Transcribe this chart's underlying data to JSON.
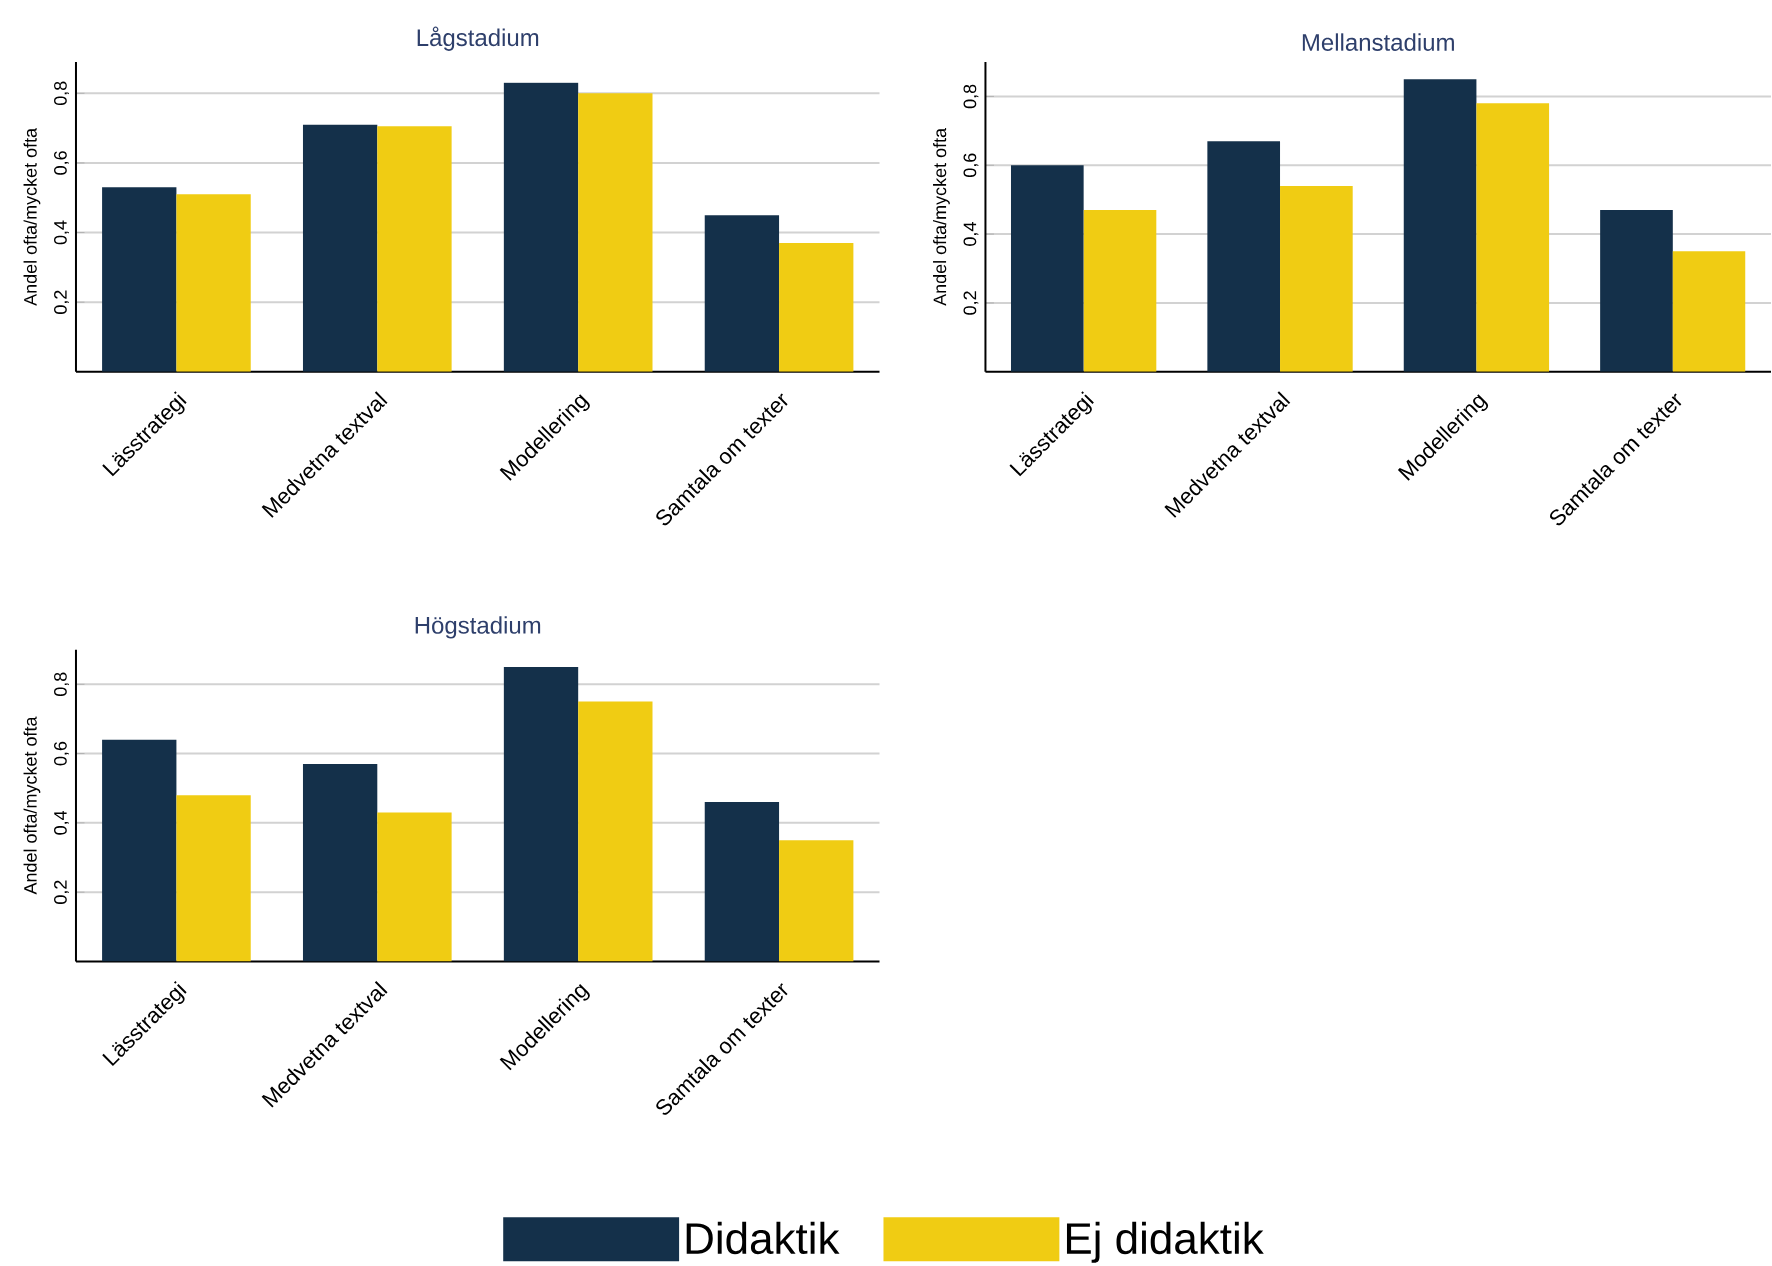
{
  "chart_data": [
    {
      "type": "bar",
      "title": "Lågstadium",
      "ylabel": "Andel ofta/mycket ofta",
      "categories": [
        "Lässtrategi",
        "Medvetna textval",
        "Modellering",
        "Samtala om texter"
      ],
      "series": [
        {
          "color": "#14304a",
          "values": [
            0.53,
            0.71,
            0.83,
            0.45
          ]
        },
        {
          "color": "#f0cc13",
          "values": [
            0.51,
            0.705,
            0.8,
            0.37
          ]
        }
      ],
      "ylim": [
        0,
        0.89
      ],
      "yticks": [
        {
          "value": 0.2,
          "label": "0,2"
        },
        {
          "value": 0.4,
          "label": "0,4"
        },
        {
          "value": 0.6,
          "label": "0,6"
        },
        {
          "value": 0.8,
          "label": "0,8"
        }
      ],
      "grid": "y"
    },
    {
      "type": "bar",
      "title": "Mellanstadium",
      "ylabel": "Andel ofta/mycket ofta",
      "categories": [
        "Lässtrategi",
        "Medvetna textval",
        "Modellering",
        "Samtala om texter"
      ],
      "series": [
        {
          "color": "#14304a",
          "values": [
            0.6,
            0.67,
            0.85,
            0.47
          ]
        },
        {
          "color": "#f0cc13",
          "values": [
            0.47,
            0.54,
            0.78,
            0.35
          ]
        }
      ],
      "ylim": [
        0,
        0.9
      ],
      "yticks": [
        {
          "value": 0.2,
          "label": "0,2"
        },
        {
          "value": 0.4,
          "label": "0,4"
        },
        {
          "value": 0.6,
          "label": "0,6"
        },
        {
          "value": 0.8,
          "label": "0,8"
        }
      ],
      "grid": "y"
    },
    {
      "type": "bar",
      "title": "Högstadium",
      "ylabel": "Andel ofta/mycket ofta",
      "categories": [
        "Lässtrategi",
        "Medvetna textval",
        "Modellering",
        "Samtala om texter"
      ],
      "series": [
        {
          "name": "Didaktik",
          "color": "#14304a",
          "values": [
            0.64,
            0.57,
            0.85,
            0.46
          ]
        },
        {
          "name": "Ej didaktik",
          "color": "#f0cc13",
          "values": [
            0.48,
            0.43,
            0.75,
            0.35
          ]
        }
      ],
      "ylim": [
        0,
        0.9
      ],
      "yticks": [
        {
          "value": 0.2,
          "label": "0,2"
        },
        {
          "value": 0.4,
          "label": "0,4"
        },
        {
          "value": 0.6,
          "label": "0,6"
        },
        {
          "value": 0.8,
          "label": "0,8"
        }
      ],
      "grid": "y",
      "legend": "bottom"
    }
  ]
}
